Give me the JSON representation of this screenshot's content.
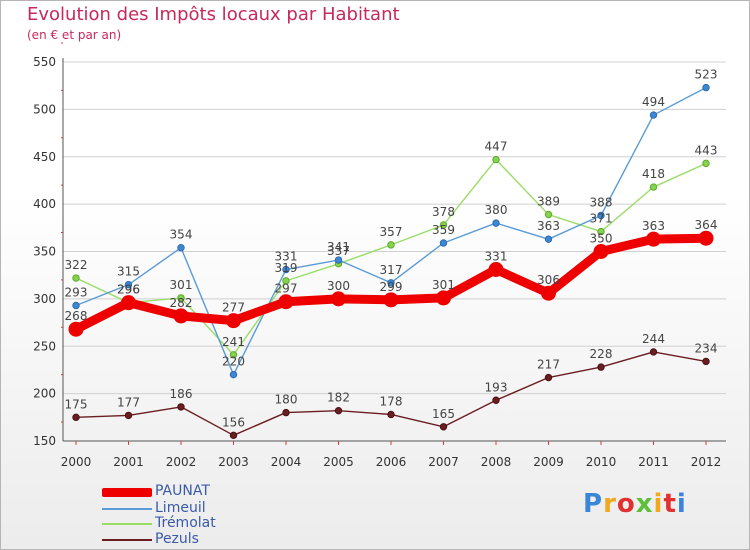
{
  "header": {
    "title": "Evolution des Impôts locaux par Habitant",
    "subtitle": "(en € et par an)"
  },
  "logo": {
    "text": "Proxiti",
    "colors": [
      "#3a86d6",
      "#f0a81e",
      "#e03030",
      "#5bbf3a",
      "#f0a81e",
      "#e03030",
      "#3a86d6"
    ]
  },
  "chart_data": {
    "type": "line",
    "title": "Evolution des Impôts locaux par Habitant",
    "subtitle": "(en € et par an)",
    "xlabel": "",
    "ylabel": "",
    "ylim": [
      150,
      550
    ],
    "yticks": [
      150,
      200,
      250,
      300,
      350,
      400,
      450,
      500,
      550
    ],
    "categories": [
      "2000",
      "2001",
      "2002",
      "2003",
      "2004",
      "2005",
      "2006",
      "2007",
      "2008",
      "2009",
      "2010",
      "2011",
      "2012"
    ],
    "legend_position": "bottom-left",
    "series": [
      {
        "name": "PAUNAT",
        "color": "#ee0000",
        "values": [
          268,
          296,
          282,
          277,
          297,
          300,
          299,
          301,
          331,
          306,
          350,
          363,
          364
        ]
      },
      {
        "name": "Limeuil",
        "color": "#5b9bd5",
        "values": [
          293,
          315,
          354,
          220,
          331,
          341,
          317,
          359,
          380,
          363,
          388,
          494,
          523
        ]
      },
      {
        "name": "Trémolat",
        "color": "#99dd66",
        "values": [
          322,
          296,
          301,
          241,
          319,
          337,
          357,
          378,
          447,
          389,
          371,
          418,
          443
        ]
      },
      {
        "name": "Pezuls",
        "color": "#6b1e22",
        "values": [
          175,
          177,
          186,
          156,
          180,
          182,
          178,
          165,
          193,
          217,
          228,
          244,
          234
        ]
      }
    ]
  }
}
